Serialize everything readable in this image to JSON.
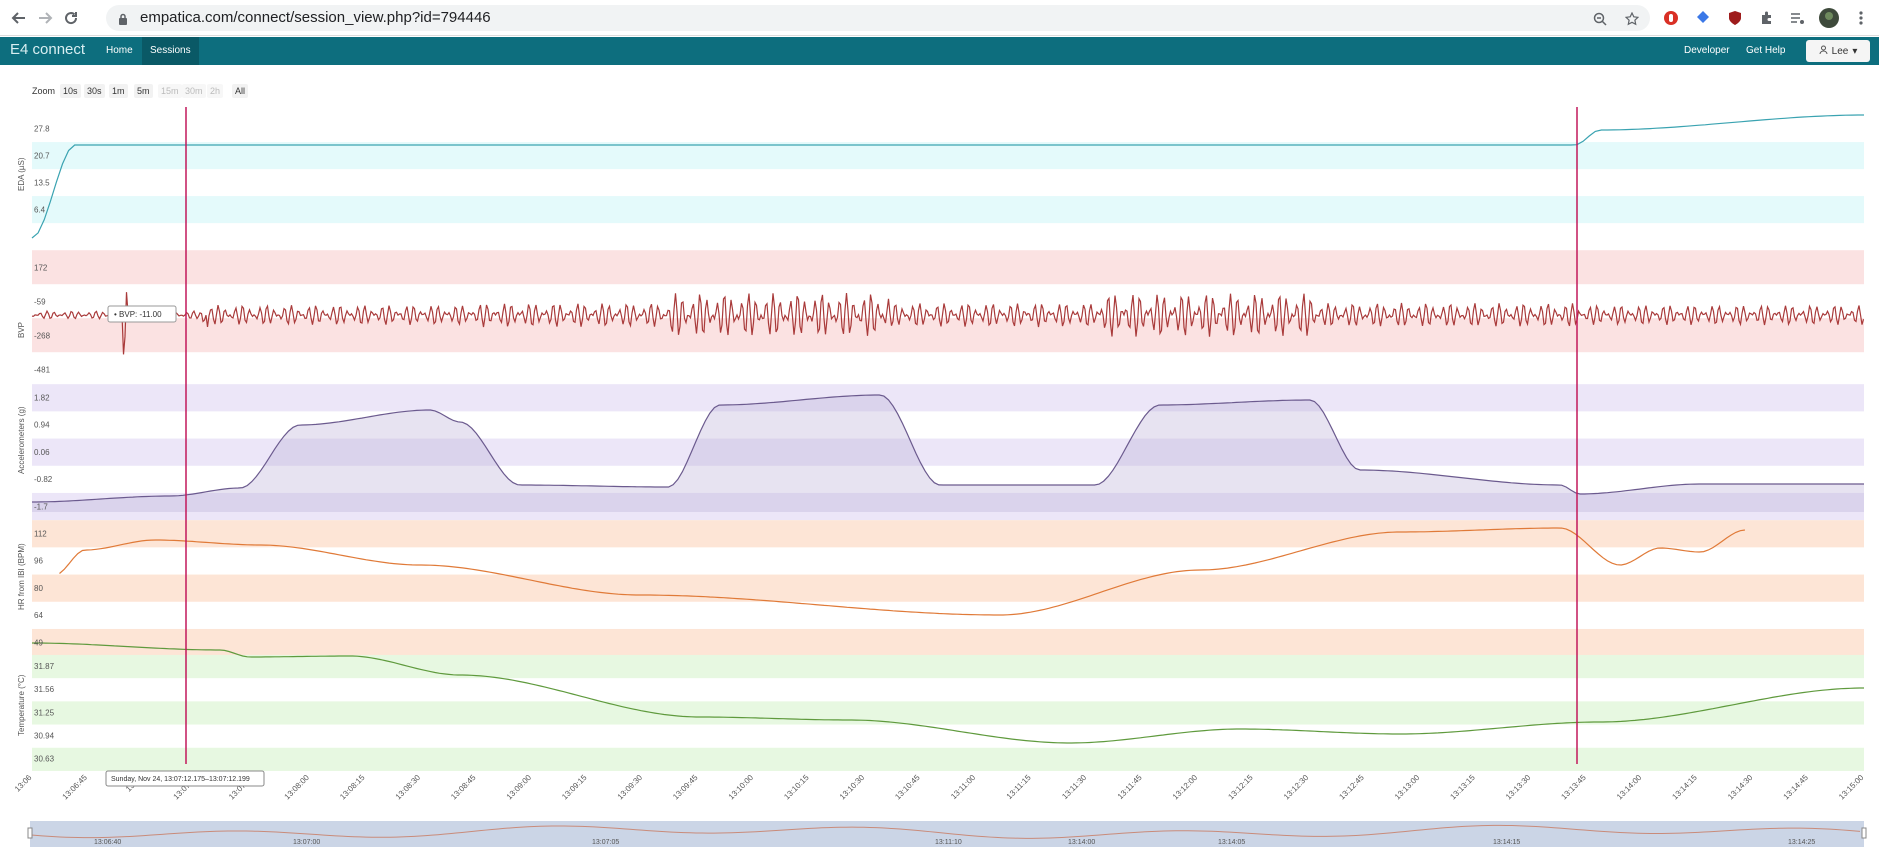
{
  "browser": {
    "url": "empatica.com/connect/session_view.php?id=794446"
  },
  "nav": {
    "brand": "E4 connect",
    "home": "Home",
    "sessions": "Sessions",
    "developer": "Developer",
    "help": "Get Help",
    "user": "Lee"
  },
  "zoom": {
    "label": "Zoom",
    "buttons": [
      {
        "label": "10s",
        "enabled": true
      },
      {
        "label": "30s",
        "enabled": true
      },
      {
        "label": "1m",
        "enabled": true
      },
      {
        "label": "5m",
        "enabled": true
      },
      {
        "label": "15m",
        "enabled": false
      },
      {
        "label": "30m",
        "enabled": false
      },
      {
        "label": "2h",
        "enabled": false
      },
      {
        "label": "All",
        "enabled": true
      }
    ]
  },
  "tooltip": {
    "bvp": "• BVP: -11.00",
    "time": "Sunday, Nov 24, 13:07:12.175–13:07:12.199"
  },
  "chart_data": {
    "type": "line",
    "panels": [
      {
        "ylabel": "EDA (µS)",
        "ticks": [
          "27.8",
          "20.7",
          "13.5",
          "6.4"
        ],
        "color": "#3aa3b1"
      },
      {
        "ylabel": "BVP",
        "ticks": [
          "172",
          "-59",
          "-268",
          "-481"
        ],
        "color": "#a93a3a"
      },
      {
        "ylabel": "Accelerometers (g)",
        "ticks": [
          "1.82",
          "0.94",
          "0.06",
          "-0.82",
          "-1.7"
        ],
        "color": "#6b5a8e"
      },
      {
        "ylabel": "HR from IBI (BPM)",
        "ticks": [
          "112",
          "96",
          "80",
          "64",
          "49"
        ],
        "color": "#e07a38"
      },
      {
        "ylabel": "Temperature (°C)",
        "ticks": [
          "31.87",
          "31.56",
          "31.25",
          "30.94",
          "30.63"
        ],
        "color": "#5f9a3d"
      }
    ],
    "x_ticks": [
      "13:06",
      "13:06:45",
      "13:07",
      "13:07:30",
      "13:07:45",
      "13:08:00",
      "13:08:15",
      "13:08:30",
      "13:08:45",
      "13:09:00",
      "13:09:15",
      "13:09:30",
      "13:09:45",
      "13:10:00",
      "13:10:15",
      "13:10:30",
      "13:10:45",
      "13:11:00",
      "13:11:15",
      "13:11:30",
      "13:11:45",
      "13:12:00",
      "13:12:15",
      "13:12:30",
      "13:12:45",
      "13:13:00",
      "13:13:15",
      "13:13:30",
      "13:13:45",
      "13:14:00",
      "13:14:15",
      "13:14:30",
      "13:14:45",
      "13:15:00"
    ],
    "navigator_ticks": [
      "13:06:40",
      "13:07:00",
      "13:07:05",
      "13:11:10",
      "13:14:00",
      "13:14:05",
      "13:14:15",
      "13:14:25"
    ],
    "markers": [
      "13:07:12",
      "13:13:45"
    ]
  }
}
